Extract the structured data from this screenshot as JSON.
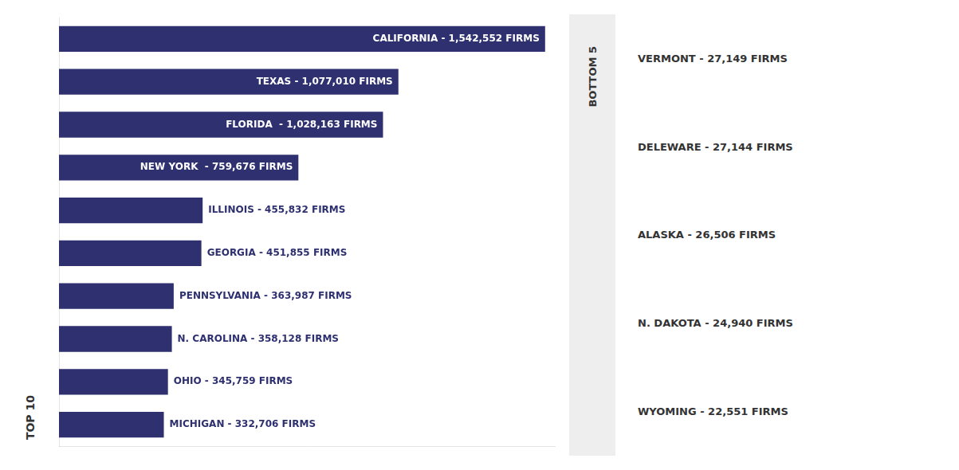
{
  "chart_data": {
    "type": "bar",
    "orientation": "horizontal",
    "categories": [
      null,
      null,
      null,
      null,
      null,
      null,
      null,
      null,
      null,
      null
    ],
    "values": [
      1542552,
      1077010,
      1028163,
      759676,
      455832,
      451855,
      363987,
      358128,
      345759,
      332706
    ],
    "value_labels": [
      "CALIFORNIA - 1,542,552 FIRMS",
      "TEXAS - 1,077,010 FIRMS",
      "FLORIDA  - 1,028,163 FIRMS",
      "NEW YORK  - 759,676 FIRMS",
      "ILLINOIS - 455,832 FIRMS",
      "GEORGIA - 451,855 FIRMS",
      "PENNSYLVANIA - 363,987 FIRMS",
      "N. CAROLINA - 358,128 FIRMS",
      "OHIO - 345,759 FIRMS",
      "MICHIGAN - 332,706 FIRMS"
    ],
    "data_labels": true,
    "color": "#2E3070",
    "xlim": [
      0,
      1573403.04
    ],
    "grid": false,
    "tick_labels": false,
    "annotations": [
      "TOP 10",
      "BOTTOM 5",
      "VERMONT - 27,149 FIRMS",
      "DELEWARE - 27,144 FIRMS",
      "ALASKA - 26,506 FIRMS",
      "N. DAKOTA - 24,940 FIRMS",
      "WYOMING - 22,551 FIRMS"
    ]
  }
}
